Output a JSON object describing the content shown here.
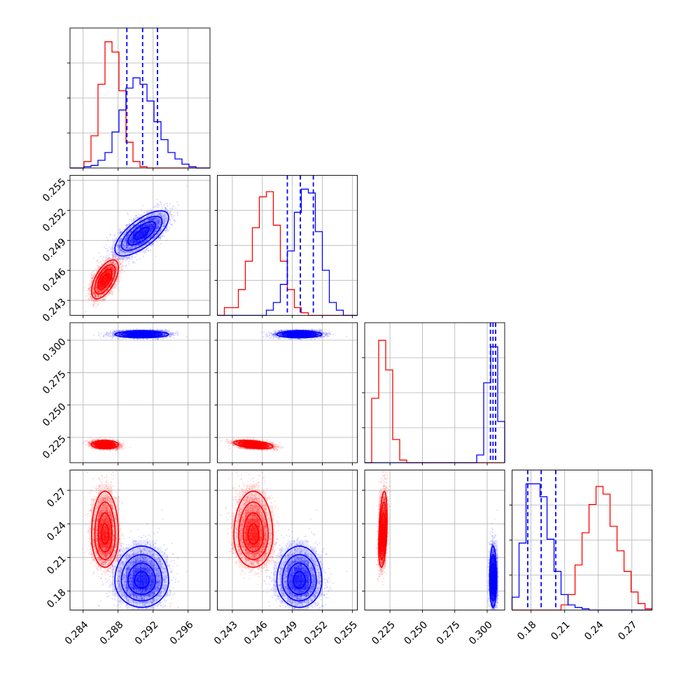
{
  "colors": {
    "series_a": "#ff0000",
    "series_b": "#0000ff",
    "grid": "#b0b0b0"
  },
  "chart_data": {
    "type": "scatter",
    "variant": "corner-plot",
    "dimensions": 4,
    "grid": true,
    "legend": "none",
    "quantile_lines": "dashed, series_b only (16%, 50%, 84%)",
    "axes": [
      {
        "range": [
          0.2825,
          0.2985
        ],
        "ticks": [
          "0.284",
          "0.288",
          "0.292",
          "0.296"
        ],
        "tick_values": [
          0.284,
          0.288,
          0.292,
          0.296
        ]
      },
      {
        "range": [
          0.2415,
          0.2555
        ],
        "ticks": [
          "0.243",
          "0.246",
          "0.249",
          "0.252",
          "0.255"
        ],
        "tick_values": [
          0.243,
          0.246,
          0.249,
          0.252,
          0.255
        ]
      },
      {
        "range": [
          0.2055,
          0.3135
        ],
        "ticks": [
          "0.225",
          "0.250",
          "0.275",
          "0.300"
        ],
        "tick_values": [
          0.225,
          0.25,
          0.275,
          0.3
        ]
      },
      {
        "range": [
          0.163,
          0.288
        ],
        "ticks": [
          "0.18",
          "0.21",
          "0.24",
          "0.27"
        ],
        "tick_values": [
          0.18,
          0.21,
          0.24,
          0.27
        ]
      }
    ],
    "series": [
      {
        "color": "#ff0000",
        "mean": [
          0.2865,
          0.2451,
          0.2195,
          0.2295
        ],
        "std": [
          0.00075,
          0.00095,
          0.0016,
          0.0138
        ],
        "corr": {
          "0-1": 0.6,
          "0-2": 0.0,
          "1-2": -0.45,
          "0-3": 0.0,
          "1-3": 0.0,
          "2-3": 0.35
        },
        "skew_axis3": 0.5,
        "hist": [
          [
            0,
            0,
            0.05,
            0.25,
            0.65,
            0.98,
            0.9,
            0.6,
            0.2,
            0.05,
            0.01,
            0,
            0,
            0,
            0,
            0,
            0,
            0,
            0,
            0
          ],
          [
            0,
            0.06,
            0.06,
            0.2,
            0.42,
            0.68,
            0.92,
            0.96,
            0.7,
            0.42,
            0.2,
            0.06,
            0.02,
            0,
            0,
            0,
            0,
            0,
            0,
            0
          ],
          [
            0,
            0.5,
            0.95,
            0.72,
            0.18,
            0.02,
            0,
            0,
            0,
            0,
            0,
            0,
            0,
            0,
            0,
            0,
            0,
            0,
            0,
            0
          ],
          [
            0,
            0,
            0,
            0,
            0,
            0,
            0,
            0.04,
            0.12,
            0.35,
            0.6,
            0.82,
            0.96,
            0.9,
            0.65,
            0.46,
            0.3,
            0.14,
            0.05,
            0.01
          ]
        ]
      },
      {
        "color": "#0000ff",
        "mean": [
          0.2907,
          0.2497,
          0.3045,
          0.189
        ],
        "std": [
          0.0015,
          0.0011,
          0.0013,
          0.0115
        ],
        "corr": {
          "0-1": 0.7,
          "0-2": 0.0,
          "1-2": 0.0,
          "0-3": 0.0,
          "1-3": 0.0,
          "2-3": 0.0
        },
        "skew_axis3": 0.4,
        "quantiles": [
          [
            0.289,
            0.2908,
            0.2925
          ],
          [
            0.2485,
            0.2498,
            0.2511
          ],
          [
            0.3025,
            0.3045,
            0.3065
          ],
          [
            0.177,
            0.189,
            0.202
          ]
        ],
        "hist": [
          [
            0,
            0,
            0.01,
            0.02,
            0.06,
            0.12,
            0.28,
            0.45,
            0.62,
            0.7,
            0.65,
            0.52,
            0.36,
            0.22,
            0.12,
            0.07,
            0.03,
            0.01,
            0,
            0
          ],
          [
            0,
            0,
            0,
            0,
            0,
            0,
            0,
            0.04,
            0.1,
            0.24,
            0.5,
            0.8,
            0.98,
            0.95,
            0.65,
            0.35,
            0.1,
            0.04,
            0,
            0
          ],
          [
            0,
            0,
            0,
            0,
            0,
            0,
            0,
            0,
            0,
            0,
            0,
            0,
            0,
            0,
            0,
            0,
            0.06,
            0.62,
            0.9,
            0.32
          ],
          [
            0.1,
            0.52,
            0.98,
            0.98,
            0.88,
            0.55,
            0.3,
            0.12,
            0.04,
            0.02,
            0.01,
            0,
            0,
            0,
            0,
            0,
            0,
            0,
            0,
            0
          ]
        ]
      }
    ]
  }
}
